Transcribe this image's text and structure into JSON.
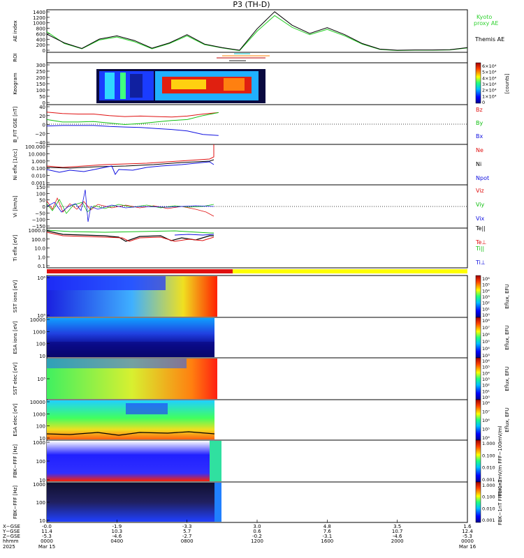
{
  "title": "P3 (TH-D)",
  "colors": {
    "kyoto": "#2fd22f",
    "themis": "#000000",
    "red": "#e01010",
    "green": "#10c010",
    "blue": "#1010e0",
    "yellow": "#ffff00"
  },
  "panels": [
    {
      "id": "ae",
      "ylabel": "AE index",
      "yticks": [
        "1400",
        "1200",
        "1000",
        "800",
        "600",
        "400",
        "200",
        "0"
      ],
      "legend": [
        "Kyoto",
        "proxy AE",
        "Themis AE"
      ]
    },
    {
      "id": "roi",
      "ylabel": "ROI"
    },
    {
      "id": "keo",
      "ylabel": "Keogram",
      "yticks": [
        "300",
        "250",
        "200",
        "150",
        "100",
        "50",
        "0"
      ],
      "cbar_ticks": [
        "6×10⁴",
        "5×10⁴",
        "4×10⁴",
        "3×10⁴",
        "2×10⁴",
        "1×10⁴",
        "0"
      ],
      "cbar_label": "[counts]"
    },
    {
      "id": "bfit",
      "ylabel": "B_FIT GSE [nT]",
      "yticks": [
        "40",
        "20",
        "0",
        "−20",
        "−40"
      ],
      "legend": [
        "Bz",
        "By",
        "Bx"
      ]
    },
    {
      "id": "ni",
      "ylabel": "Ni eflx [1/cc]",
      "yticks": [
        "100.000",
        "10.000",
        "1.000",
        "0.100",
        "0.010",
        "0.001"
      ],
      "legend": [
        "Ne",
        "Ni",
        "Npot"
      ]
    },
    {
      "id": "vi",
      "ylabel": "Vi [km/s]",
      "yticks": [
        "150",
        "100",
        "50",
        "0",
        "−50",
        "−100",
        "−150"
      ],
      "legend": [
        "Viz",
        "Viy",
        "Vix"
      ]
    },
    {
      "id": "ti",
      "ylabel": "Ti eflx [eV]",
      "yticks": [
        "1000.0",
        "100.0",
        "10.0",
        "1.0",
        "0.1"
      ],
      "legend": [
        "Te||",
        "Te⊥",
        "Ti||",
        "Ti⊥"
      ]
    },
    {
      "id": "ssti",
      "ylabel": "SST ions [eV]",
      "yticks": [
        "10⁶",
        "10⁵"
      ],
      "cbar_ticks": [
        "10⁶",
        "10⁵",
        "10⁴",
        "10³",
        "10²",
        "10¹",
        "10⁰"
      ],
      "cbar_label": "Eflux, EFU"
    },
    {
      "id": "esai",
      "ylabel": "ESA ions [eV]",
      "yticks": [
        "10000",
        "1000",
        "100",
        "10"
      ],
      "cbar_ticks": [
        "10⁸",
        "10⁷",
        "10⁶",
        "10⁵",
        "10⁴",
        "10³"
      ],
      "cbar_label": "Eflux, EFU"
    },
    {
      "id": "sste",
      "ylabel": "SST elec [eV]",
      "yticks": [
        "10⁵"
      ],
      "cbar_ticks": [
        "10⁶",
        "10⁵",
        "10⁴",
        "10³",
        "10²",
        "10¹",
        "10⁰"
      ],
      "cbar_label": "Eflux, EFU"
    },
    {
      "id": "esae",
      "ylabel": "ESA elec [eV]",
      "yticks": [
        "10000",
        "1000",
        "100",
        "10"
      ],
      "cbar_ticks": [
        "10⁸",
        "10⁷",
        "10⁶",
        "10⁵",
        "10⁴"
      ],
      "cbar_label": "Eflux, EFU"
    },
    {
      "id": "fbkb",
      "ylabel": "FBK−FFF [Hz]",
      "yticks": [
        "1000",
        "100",
        "10"
      ],
      "cbar_ticks": [
        "1.000",
        "0.100",
        "0.010",
        "0.001"
      ],
      "cbar_label": "FBK−1mV/m FFF−100mV/ml"
    },
    {
      "id": "fbke",
      "ylabel": "FBK−FFF [Hz]",
      "yticks": [
        "1000",
        "100",
        "10"
      ],
      "cbar_ticks": [
        "1.000",
        "0.100",
        "0.010",
        "0.001"
      ],
      "cbar_label": "FBK−1nT FFF−1nT"
    }
  ],
  "xaxis": {
    "row_labels": [
      "X−GSE",
      "Y−GSE",
      "Z−GSE",
      "hhmm",
      "2025"
    ],
    "ticks": [
      {
        "x": "-0.0",
        "y": "11.4",
        "z": "-5.3",
        "hhmm": "0000",
        "date": "Mar 15"
      },
      {
        "x": "-1.9",
        "y": "10.3",
        "z": "-4.6",
        "hhmm": "0400",
        "date": ""
      },
      {
        "x": "-3.3",
        "y": "5.7",
        "z": "-2.7",
        "hhmm": "0800",
        "date": ""
      },
      {
        "x": "3.0",
        "y": "0.6",
        "z": "-0.2",
        "hhmm": "1200",
        "date": ""
      },
      {
        "x": "4.8",
        "y": "7.6",
        "z": "-3.1",
        "hhmm": "1600",
        "date": ""
      },
      {
        "x": "3.5",
        "y": "10.7",
        "z": "-4.6",
        "hhmm": "2000",
        "date": ""
      },
      {
        "x": "1.6",
        "y": "12.4",
        "z": "-5.3",
        "hhmm": "0000",
        "date": "Mar 16"
      }
    ]
  },
  "chart_data": {
    "type": "line",
    "title": "P3 (TH-D)",
    "xlabel": "hhmm",
    "x_hours": [
      0,
      1,
      2,
      3,
      4,
      5,
      6,
      7,
      8,
      9,
      10,
      11,
      12,
      13,
      14,
      15,
      16,
      17,
      18,
      19,
      20,
      21,
      22,
      23,
      24
    ],
    "series": [
      {
        "name": "Kyoto proxy AE",
        "panel": "ae",
        "values": [
          700,
          300,
          120,
          420,
          520,
          360,
          120,
          300,
          560,
          260,
          150,
          60,
          720,
          1250,
          850,
          600,
          780,
          560,
          280,
          100,
          60,
          70,
          70,
          80,
          150
        ]
      },
      {
        "name": "Themis AE",
        "panel": "ae",
        "values": [
          620,
          320,
          130,
          450,
          560,
          400,
          140,
          320,
          600,
          280,
          160,
          70,
          800,
          1380,
          920,
          640,
          840,
          600,
          300,
          110,
          70,
          80,
          80,
          90,
          160
        ]
      },
      {
        "name": "Bz",
        "panel": "bfit",
        "values": [
          25,
          22,
          21,
          21,
          18,
          16,
          17,
          16,
          15,
          17,
          21,
          24
        ]
      },
      {
        "name": "By",
        "panel": "bfit",
        "values": [
          10,
          5,
          5,
          6,
          3,
          0,
          2,
          5,
          8,
          10,
          18,
          24
        ]
      },
      {
        "name": "Bx",
        "panel": "bfit",
        "values": [
          -3,
          -2,
          -2,
          -2,
          -4,
          -5,
          -6,
          -8,
          -10,
          -13,
          -20,
          -22
        ]
      }
    ],
    "ylim_ae": [
      0,
      1400
    ],
    "ylim_bfit": [
      -40,
      40
    ],
    "data_end_hour": 9.8
  }
}
